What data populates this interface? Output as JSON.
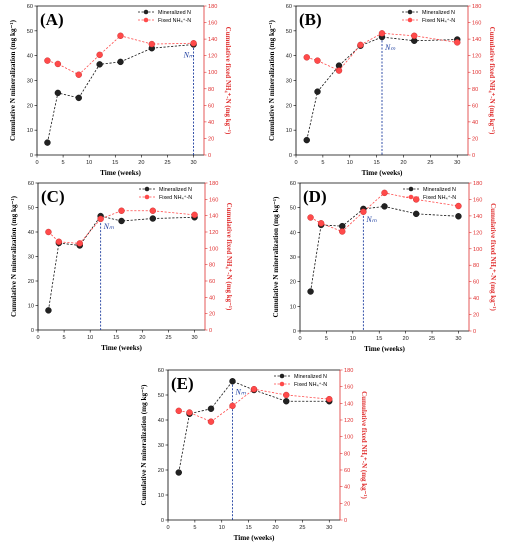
{
  "chart_data": [
    {
      "type": "line",
      "panel_label": "(A)",
      "x": [
        2,
        4,
        8,
        12,
        16,
        22,
        30
      ],
      "xlabel": "Time (weeks)",
      "ylabel": "Cumulative N mineralization (mg kg⁻¹)",
      "y2label": "Cumulative fixed NH₄⁺-N (mg kg⁻¹)",
      "xlim": [
        0,
        32
      ],
      "ylim": [
        0,
        60
      ],
      "y2lim": [
        0,
        180
      ],
      "xticks": [
        "0",
        "5",
        "10",
        "15",
        "20",
        "25",
        "30"
      ],
      "yticks": [
        "0",
        "10",
        "20",
        "30",
        "40",
        "50",
        "60"
      ],
      "y2ticks": [
        "0",
        "20",
        "40",
        "60",
        "80",
        "100",
        "120",
        "140",
        "160",
        "180"
      ],
      "nm_week": 30,
      "nm_label": "Nₘ",
      "series": [
        {
          "name": "Mineralized N",
          "axis": "left",
          "color": "#111111",
          "values": [
            5,
            25,
            23,
            36.5,
            37.5,
            43,
            44.5
          ]
        },
        {
          "name": "Fixed NH₄⁺-N",
          "axis": "right",
          "color": "#ff4a4a",
          "values": [
            114,
            110,
            97,
            121,
            144,
            134,
            135
          ]
        }
      ]
    },
    {
      "type": "line",
      "panel_label": "(B)",
      "x": [
        2,
        4,
        8,
        12,
        16,
        22,
        30
      ],
      "xlabel": "Time (weeks)",
      "ylabel": "Cumulative N mineralization (mg kg⁻¹)",
      "y2label": "Cumulative fixed NH₄⁺-N (mg kg⁻¹)",
      "xlim": [
        0,
        32
      ],
      "ylim": [
        0,
        60
      ],
      "y2lim": [
        0,
        180
      ],
      "xticks": [
        "0",
        "5",
        "10",
        "15",
        "20",
        "25",
        "30"
      ],
      "yticks": [
        "0",
        "10",
        "20",
        "30",
        "40",
        "50",
        "60"
      ],
      "y2ticks": [
        "0",
        "20",
        "40",
        "60",
        "80",
        "100",
        "120",
        "140",
        "160",
        "180"
      ],
      "nm_week": 16,
      "nm_label": "Nₘ",
      "series": [
        {
          "name": "Mineralized N",
          "axis": "left",
          "color": "#111111",
          "values": [
            6,
            25.5,
            36,
            44,
            47.5,
            46,
            46.5
          ]
        },
        {
          "name": "Fixed NH₄⁺-N",
          "axis": "right",
          "color": "#ff4a4a",
          "values": [
            118,
            114,
            102,
            133,
            147,
            144,
            136
          ]
        }
      ]
    },
    {
      "type": "line",
      "panel_label": "(C)",
      "x": [
        2,
        4,
        8,
        12,
        16,
        22,
        30
      ],
      "xlabel": "Time (weeks)",
      "ylabel": "Cumulative N mineralization (mg kg⁻¹)",
      "y2label": "Cumulative fixed NH₄⁺-N (mg kg⁻¹)",
      "xlim": [
        0,
        32
      ],
      "ylim": [
        0,
        60
      ],
      "y2lim": [
        0,
        180
      ],
      "xticks": [
        "0",
        "5",
        "10",
        "15",
        "20",
        "25",
        "30"
      ],
      "yticks": [
        "0",
        "10",
        "20",
        "30",
        "40",
        "50",
        "60"
      ],
      "y2ticks": [
        "0",
        "20",
        "40",
        "60",
        "80",
        "100",
        "120",
        "140",
        "160",
        "180"
      ],
      "nm_week": 12,
      "nm_label": "Nₘ",
      "series": [
        {
          "name": "Mineralized N",
          "axis": "left",
          "color": "#111111",
          "values": [
            8,
            35.5,
            34.5,
            46.5,
            44.5,
            45.5,
            46
          ]
        },
        {
          "name": "Fixed NH₄⁺-N",
          "axis": "right",
          "color": "#ff4a4a",
          "values": [
            120,
            108,
            106,
            136,
            146,
            146,
            141
          ]
        }
      ]
    },
    {
      "type": "line",
      "panel_label": "(D)",
      "x": [
        2,
        4,
        8,
        12,
        16,
        22,
        30
      ],
      "xlabel": "Time (weeks)",
      "ylabel": "Cumulative N mineralization (mg kg⁻¹)",
      "y2label": "Cumulative fixed NH₄⁺-N (mg kg⁻¹)",
      "xlim": [
        0,
        32
      ],
      "ylim": [
        0,
        60
      ],
      "y2lim": [
        0,
        180
      ],
      "xticks": [
        "0",
        "5",
        "10",
        "15",
        "20",
        "25",
        "30"
      ],
      "yticks": [
        "0",
        "10",
        "20",
        "30",
        "40",
        "50",
        "60"
      ],
      "y2ticks": [
        "0",
        "20",
        "40",
        "60",
        "80",
        "100",
        "120",
        "140",
        "160",
        "180"
      ],
      "nm_week": 12,
      "nm_label": "Nₘ",
      "series": [
        {
          "name": "Mineralized N",
          "axis": "left",
          "color": "#111111",
          "values": [
            16,
            43,
            42.5,
            49.5,
            50.5,
            47.5,
            46.5
          ]
        },
        {
          "name": "Fixed NH₄⁺-N",
          "axis": "right",
          "color": "#ff4a4a",
          "values": [
            138,
            131,
            121,
            145,
            168,
            160,
            152
          ]
        }
      ]
    },
    {
      "type": "line",
      "panel_label": "(E)",
      "x": [
        2,
        4,
        8,
        12,
        16,
        22,
        30
      ],
      "xlabel": "Time (weeks)",
      "ylabel": "Cumulative N mineralization (mg kg⁻¹)",
      "y2label": "Cumulative fixed NH₄⁺-N (mg kg⁻¹)",
      "xlim": [
        0,
        32
      ],
      "ylim": [
        0,
        60
      ],
      "y2lim": [
        0,
        180
      ],
      "xticks": [
        "0",
        "5",
        "10",
        "15",
        "20",
        "25",
        "30"
      ],
      "yticks": [
        "0",
        "10",
        "20",
        "30",
        "40",
        "50",
        "60"
      ],
      "y2ticks": [
        "0",
        "20",
        "40",
        "60",
        "80",
        "100",
        "120",
        "140",
        "160",
        "180"
      ],
      "nm_week": 12,
      "nm_label": "Nₘ",
      "series": [
        {
          "name": "Mineralized N",
          "axis": "left",
          "color": "#111111",
          "values": [
            19,
            42.5,
            44.5,
            55.5,
            52,
            47.5,
            47.5
          ]
        },
        {
          "name": "Fixed NH₄⁺-N",
          "axis": "right",
          "color": "#ff4a4a",
          "values": [
            131,
            129,
            118,
            137,
            157,
            150,
            145
          ]
        }
      ]
    }
  ]
}
